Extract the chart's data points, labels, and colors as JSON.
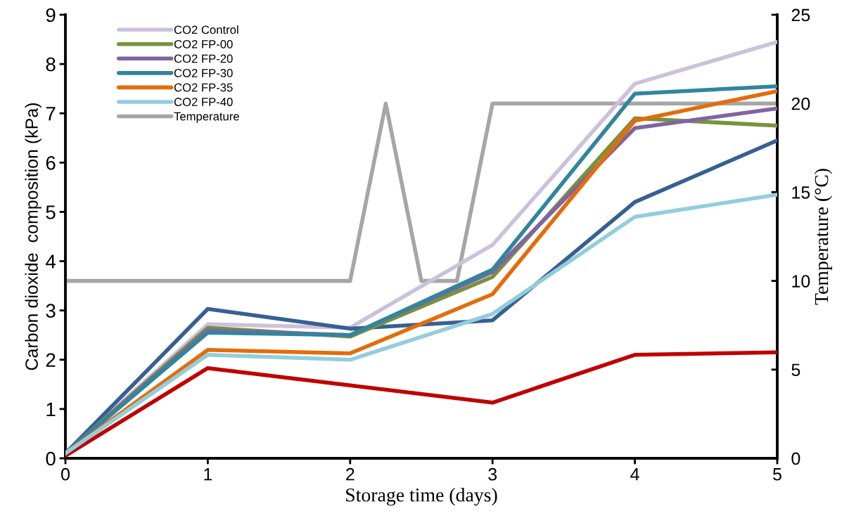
{
  "chart_data": {
    "type": "line",
    "xlabel": "Storage time (days)",
    "ylabel": "Carbon dioxide  composition (kPa)",
    "y2label": "Temperature (°C)",
    "x": [
      0,
      1,
      2,
      3,
      4,
      5
    ],
    "series": [
      {
        "name": "CO2 Control",
        "color": "#ccc1da",
        "values": [
          0.1,
          2.72,
          2.65,
          4.33,
          7.6,
          8.45
        ]
      },
      {
        "color": "#376092",
        "values": [
          0.1,
          3.03,
          2.63,
          2.8,
          5.2,
          6.45
        ]
      },
      {
        "color": "#c00000",
        "values": [
          0.05,
          1.83,
          1.48,
          1.13,
          2.1,
          2.15
        ]
      },
      {
        "name": "CO2 FP-00",
        "color": "#77933c",
        "values": [
          0.1,
          2.65,
          2.47,
          3.68,
          6.9,
          6.75
        ]
      },
      {
        "name": "CO2 FP-20",
        "color": "#8064a2",
        "values": [
          0.1,
          2.6,
          2.5,
          3.78,
          6.7,
          7.1
        ]
      },
      {
        "name": "CO2 FP-30",
        "color": "#31859c",
        "values": [
          0.1,
          2.55,
          2.5,
          3.83,
          7.4,
          7.55
        ]
      },
      {
        "name": "CO2 FP-35",
        "color": "#e46c0a",
        "values": [
          0.1,
          2.2,
          2.13,
          3.33,
          6.85,
          7.45
        ]
      },
      {
        "name": "CO2 FP-40",
        "color": "#93cddd",
        "values": [
          0.1,
          2.1,
          2.0,
          2.93,
          4.9,
          5.35
        ]
      },
      {
        "name": "Temperature",
        "color": "#a6a6a6",
        "axis": "y2",
        "x": [
          0,
          2,
          2.25,
          2.5,
          2.75,
          3,
          5
        ],
        "values": [
          10,
          10,
          20,
          10,
          10,
          20,
          20
        ]
      }
    ],
    "xlim": [
      0,
      5
    ],
    "xticks": [
      0,
      1,
      2,
      3,
      4,
      5
    ],
    "ylim": [
      0,
      9
    ],
    "yticks": [
      0,
      1,
      2,
      3,
      4,
      5,
      6,
      7,
      8,
      9
    ],
    "y2lim": [
      0,
      25
    ],
    "y2ticks": [
      0,
      5,
      10,
      15,
      20,
      25
    ],
    "legend": "top left",
    "grid": false,
    "marker": "none",
    "line_style": "solid"
  }
}
